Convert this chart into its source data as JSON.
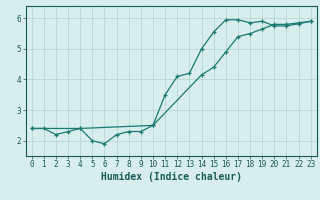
{
  "title": "",
  "xlabel": "Humidex (Indice chaleur)",
  "ylabel": "",
  "background_color": "#d7eeed",
  "grid_color": "#b8d8d5",
  "line_color": "#1a7a6e",
  "line1_x": [
    0,
    1,
    2,
    3,
    4,
    5,
    6,
    7,
    8,
    9,
    10,
    11,
    12,
    13,
    14,
    15,
    16,
    17,
    18,
    19,
    20,
    21,
    22,
    23
  ],
  "line1_y": [
    2.4,
    2.4,
    2.2,
    2.3,
    2.4,
    2.0,
    1.9,
    2.2,
    2.3,
    2.3,
    2.5,
    3.5,
    4.1,
    4.2,
    5.0,
    5.55,
    5.95,
    5.95,
    5.85,
    5.9,
    5.75,
    5.75,
    5.82,
    5.9
  ],
  "line2_x": [
    0,
    4,
    10,
    14,
    15,
    16,
    17,
    18,
    19,
    20,
    21,
    22,
    23
  ],
  "line2_y": [
    2.4,
    2.4,
    2.5,
    4.15,
    4.4,
    4.9,
    5.4,
    5.5,
    5.65,
    5.8,
    5.8,
    5.85,
    5.9
  ],
  "xlim": [
    -0.5,
    23.5
  ],
  "ylim": [
    1.5,
    6.4
  ],
  "yticks": [
    2,
    3,
    4,
    5,
    6
  ],
  "xticks": [
    0,
    1,
    2,
    3,
    4,
    5,
    6,
    7,
    8,
    9,
    10,
    11,
    12,
    13,
    14,
    15,
    16,
    17,
    18,
    19,
    20,
    21,
    22,
    23
  ],
  "font_color": "#1a5a52",
  "tick_fontsize": 5.5,
  "xlabel_fontsize": 7.0
}
